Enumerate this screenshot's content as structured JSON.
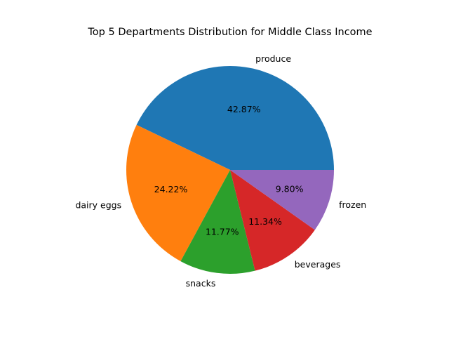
{
  "chart_data": {
    "type": "pie",
    "title": "Top 5 Departments Distribution for Middle Class Income",
    "categories": [
      "produce",
      "dairy eggs",
      "snacks",
      "beverages",
      "frozen"
    ],
    "values": [
      42.87,
      24.22,
      11.77,
      11.34,
      9.8
    ],
    "percent_labels": [
      "42.87%",
      "24.22%",
      "11.77%",
      "11.34%",
      "9.80%"
    ],
    "colors": [
      "#1f77b4",
      "#ff7f0e",
      "#2ca02c",
      "#d62728",
      "#9467bd"
    ],
    "legend": false
  }
}
